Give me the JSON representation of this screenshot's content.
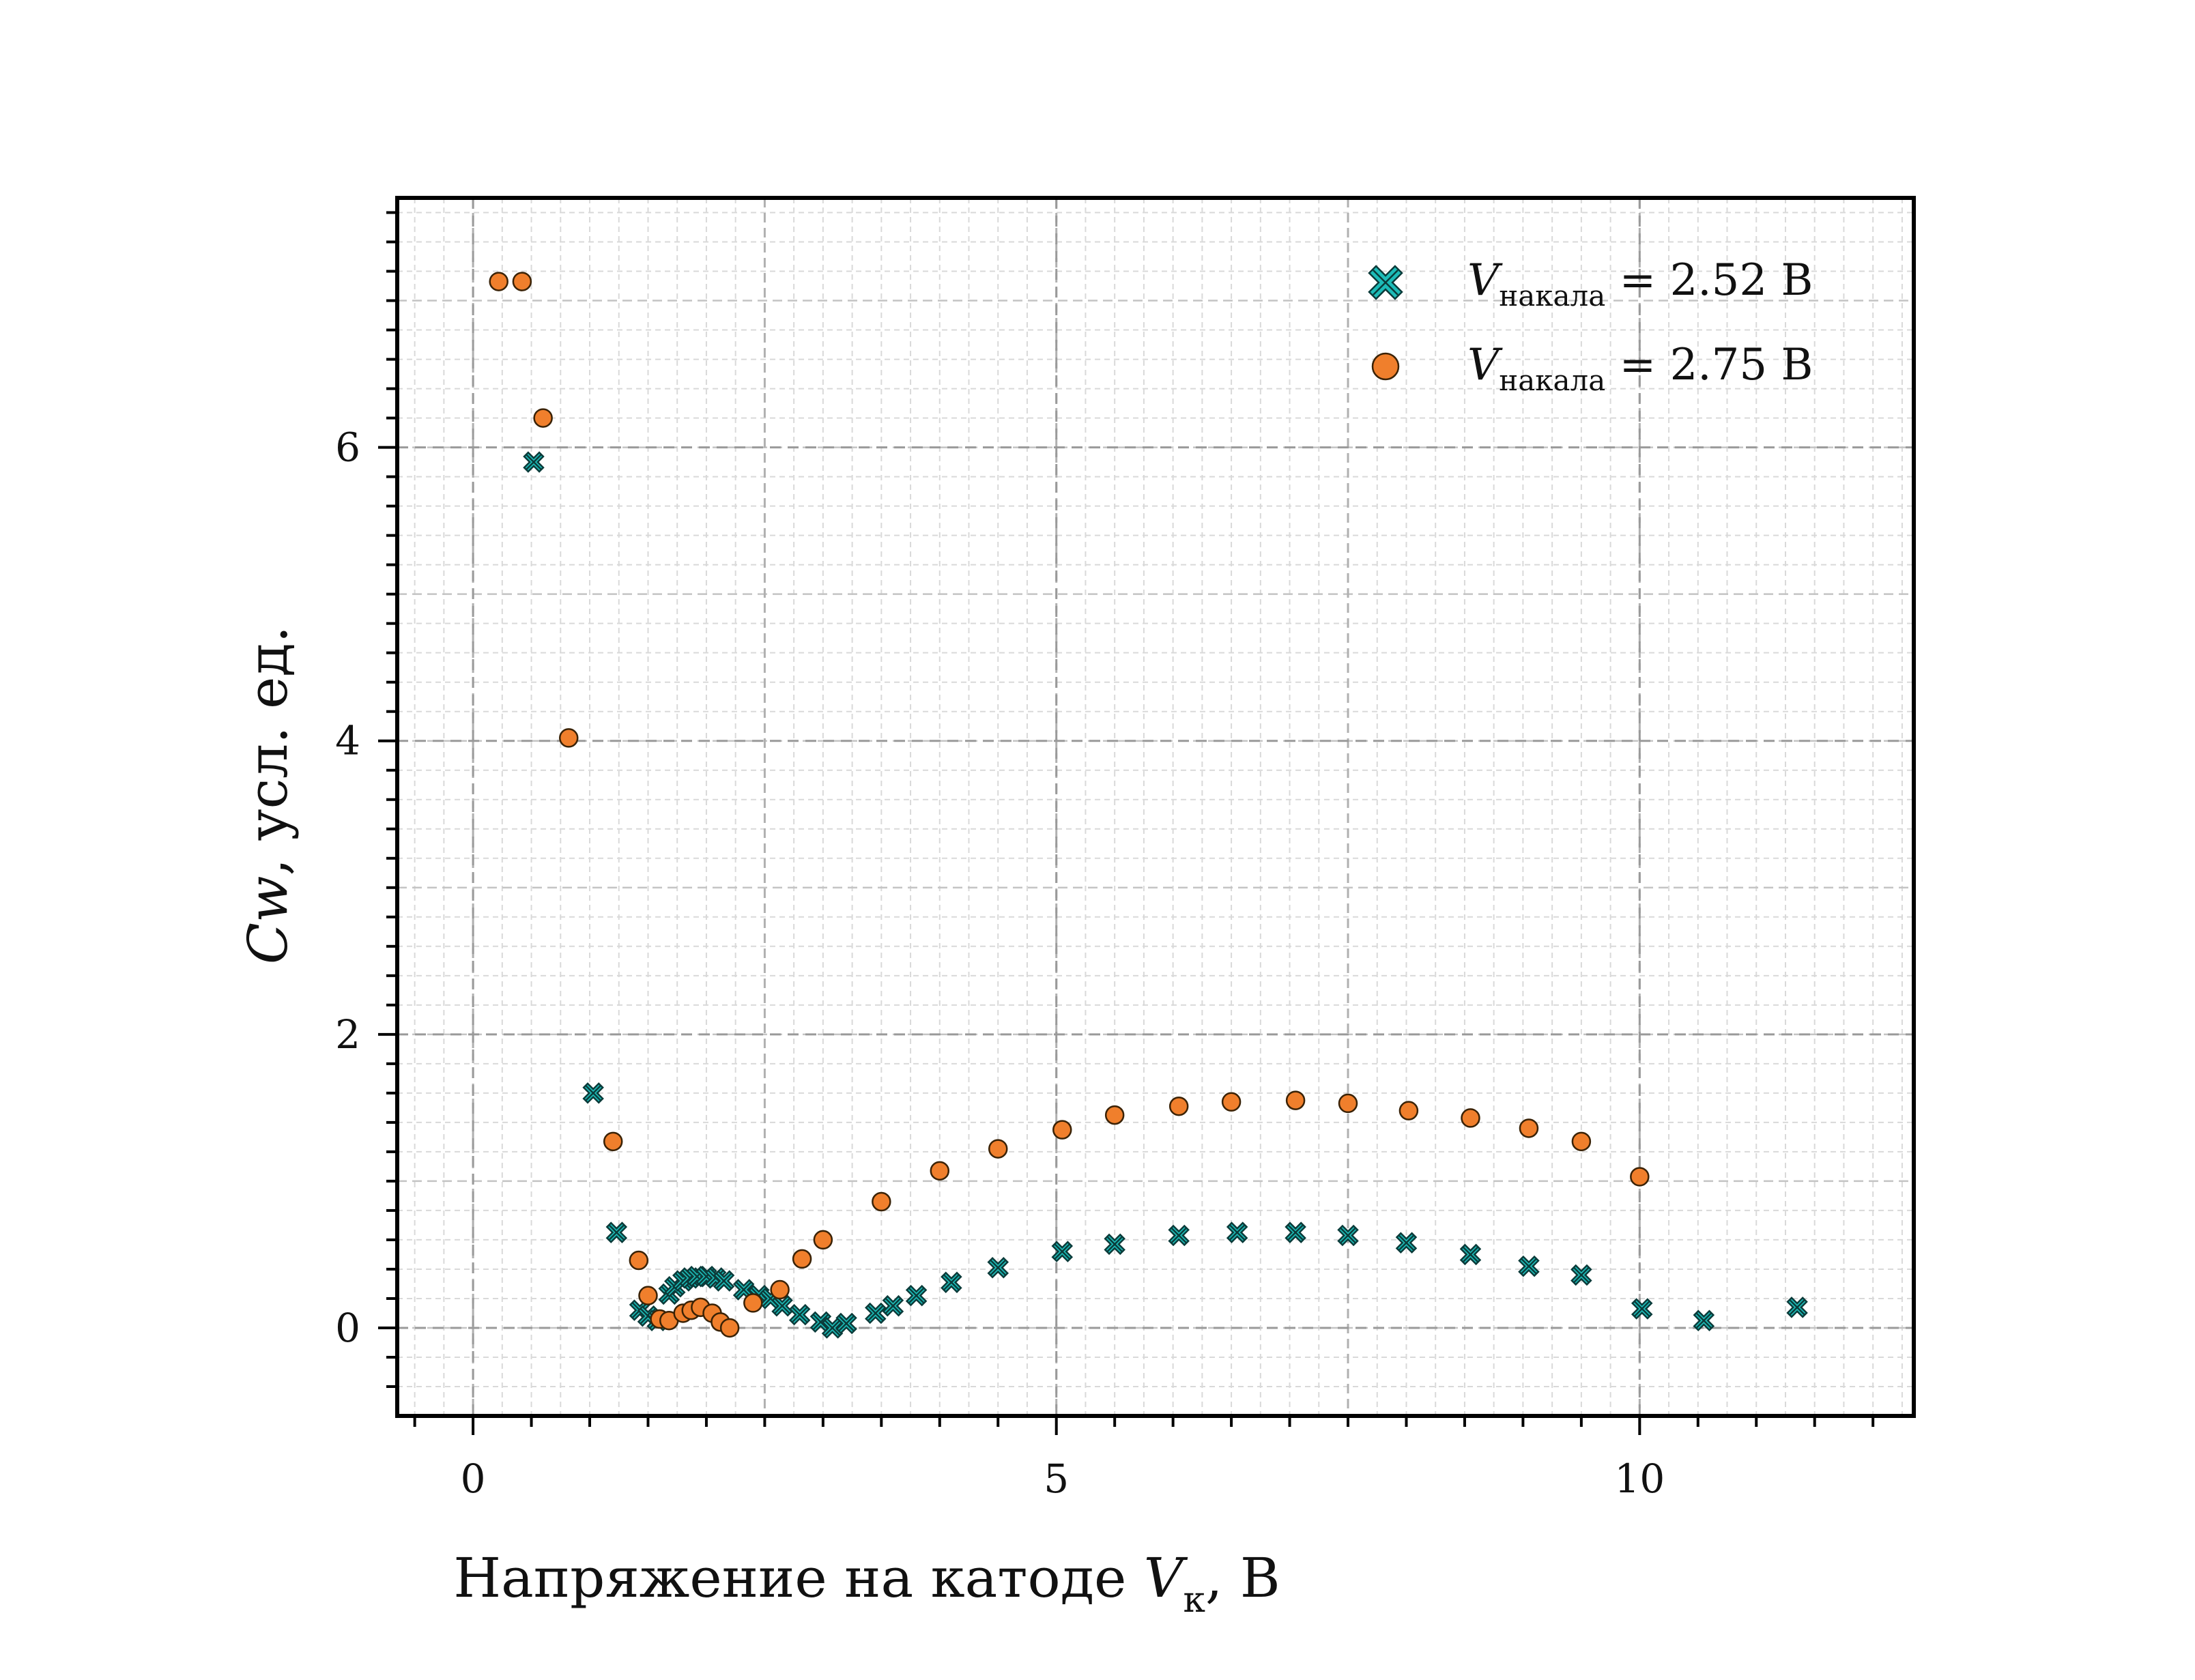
{
  "chart_data": {
    "type": "scatter",
    "xlabel": "Напряжение на катоде V_к, В",
    "xlabel_parts": {
      "text": "Напряжение на катоде ",
      "var": "V",
      "sub": "к",
      "unit": ", В"
    },
    "ylabel": "Cw, усл. ед.",
    "ylabel_parts": {
      "var": "Cw",
      "unit": ", усл. ед."
    },
    "xlim": [
      -0.65,
      12.35
    ],
    "ylim": [
      -0.6,
      7.7
    ],
    "xticks": [
      0,
      5,
      10
    ],
    "yticks": [
      0,
      2,
      4,
      6
    ],
    "grid": true,
    "legend_position": "top-right",
    "series": [
      {
        "name": "V_накала = 2.52 В",
        "name_parts": {
          "var": "V",
          "sub": "накала",
          "value": " = 2.52 В"
        },
        "marker": "x-filled",
        "color": "#1dbcb8",
        "x": [
          0.52,
          1.03,
          1.23,
          1.43,
          1.5,
          1.58,
          1.68,
          1.73,
          1.8,
          1.86,
          1.92,
          2.0,
          2.08,
          2.15,
          2.32,
          2.45,
          2.55,
          2.65,
          2.8,
          2.98,
          3.08,
          3.2,
          3.45,
          3.6,
          3.8,
          4.1,
          4.5,
          5.05,
          5.5,
          6.05,
          6.55,
          7.05,
          7.5,
          8.0,
          8.55,
          9.05,
          9.5,
          10.02,
          10.55,
          11.35
        ],
        "y": [
          5.9,
          1.6,
          0.65,
          0.12,
          0.08,
          0.05,
          0.23,
          0.28,
          0.32,
          0.34,
          0.35,
          0.35,
          0.34,
          0.32,
          0.26,
          0.22,
          0.2,
          0.15,
          0.09,
          0.04,
          0.0,
          0.03,
          0.1,
          0.15,
          0.22,
          0.31,
          0.41,
          0.52,
          0.57,
          0.63,
          0.65,
          0.65,
          0.63,
          0.58,
          0.5,
          0.42,
          0.36,
          0.13,
          0.05,
          0.14
        ]
      },
      {
        "name": "V_накала = 2.75 В",
        "name_parts": {
          "var": "V",
          "sub": "накала",
          "value": " = 2.75 В"
        },
        "marker": "circle",
        "color": "#f07f2c",
        "x": [
          0.22,
          0.42,
          0.6,
          0.82,
          1.2,
          1.42,
          1.5,
          1.6,
          1.68,
          1.8,
          1.87,
          1.95,
          2.05,
          2.12,
          2.2,
          2.4,
          2.63,
          2.82,
          3.0,
          3.5,
          4.0,
          4.5,
          5.05,
          5.5,
          6.05,
          6.5,
          7.05,
          7.5,
          8.02,
          8.55,
          9.05,
          9.5,
          10.0
        ],
        "y": [
          7.13,
          7.13,
          6.2,
          4.02,
          1.27,
          0.46,
          0.22,
          0.06,
          0.05,
          0.1,
          0.12,
          0.14,
          0.1,
          0.04,
          0.0,
          0.17,
          0.26,
          0.47,
          0.6,
          0.86,
          1.07,
          1.22,
          1.35,
          1.45,
          1.51,
          1.54,
          1.55,
          1.53,
          1.48,
          1.43,
          1.36,
          1.27,
          1.03
        ]
      }
    ]
  }
}
